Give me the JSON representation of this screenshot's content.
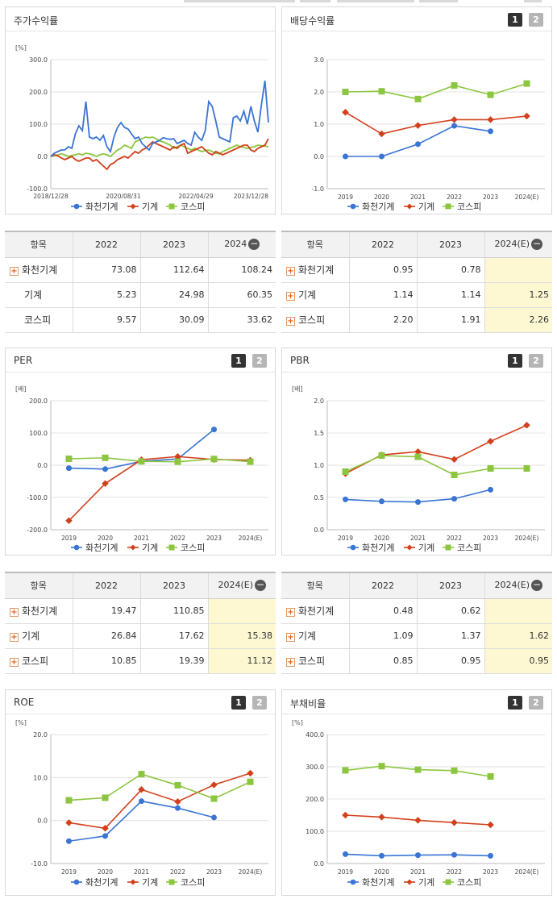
{
  "panels": {
    "stock": {
      "title": "주가수익률"
    },
    "dividend": {
      "title": "배당수익률"
    },
    "per": {
      "title": "PER"
    },
    "pbr": {
      "title": "PBR"
    },
    "roe": {
      "title": "ROE"
    },
    "debt": {
      "title": "부채비율"
    }
  },
  "pager": {
    "page1": "1",
    "page2": "2"
  },
  "legend": {
    "s1": "화천기계",
    "s2": "기계",
    "s3": "코스피"
  },
  "colors": {
    "s1": "#3a74d4",
    "s2": "#d2401c",
    "s3": "#8cc63f",
    "estimate_bg": "#fdf8d2"
  },
  "icons": {
    "expand": "plus-icon",
    "collapse": "minus-icon"
  },
  "chart_data": [
    {
      "id": "stock",
      "type": "line",
      "unit": "[%]",
      "ylim": [
        -100,
        300
      ],
      "yticks": [
        "300.0",
        "200.0",
        "100.0",
        "0.0",
        "-100.0"
      ],
      "xticks": [
        "2018/12/28",
        "2020/08/31",
        "2022/04/29",
        "2023/12/28"
      ],
      "series": [
        {
          "name": "화천기계",
          "values": [
            0,
            10,
            15,
            20,
            20,
            30,
            25,
            70,
            95,
            80,
            170,
            60,
            55,
            60,
            50,
            65,
            30,
            15,
            60,
            90,
            105,
            90,
            85,
            70,
            55,
            60,
            40,
            30,
            20,
            40,
            45,
            50,
            58,
            55,
            53,
            55,
            40,
            45,
            50,
            40,
            35,
            75,
            60,
            50,
            80,
            170,
            155,
            110,
            60,
            55,
            50,
            45,
            120,
            125,
            110,
            140,
            100,
            155,
            110,
            75,
            160,
            235,
            105
          ]
        },
        {
          "name": "기계",
          "values": [
            0,
            5,
            2,
            -5,
            -10,
            -5,
            0,
            -10,
            -15,
            -10,
            -5,
            -5,
            -15,
            -10,
            -20,
            -30,
            -40,
            -25,
            -20,
            -10,
            -5,
            0,
            -5,
            5,
            15,
            10,
            20,
            25,
            35,
            45,
            40,
            35,
            30,
            25,
            20,
            30,
            25,
            35,
            40,
            10,
            15,
            20,
            25,
            30,
            20,
            10,
            5,
            15,
            10,
            5,
            10,
            15,
            20,
            25,
            30,
            35,
            35,
            20,
            15,
            25,
            30,
            35,
            55
          ]
        },
        {
          "name": "코스피",
          "values": [
            0,
            2,
            5,
            8,
            5,
            0,
            3,
            5,
            8,
            5,
            10,
            8,
            5,
            0,
            5,
            8,
            5,
            0,
            10,
            20,
            25,
            35,
            30,
            25,
            45,
            50,
            55,
            60,
            58,
            60,
            55,
            48,
            45,
            40,
            35,
            25,
            30,
            35,
            30,
            25,
            20,
            25,
            20,
            15,
            18,
            20,
            15,
            10,
            8,
            15,
            20,
            25,
            30,
            35,
            30,
            28,
            25,
            28,
            30,
            35,
            33,
            32,
            30
          ]
        }
      ]
    },
    {
      "id": "dividend",
      "type": "line",
      "unit": "",
      "ylim": [
        -1,
        3
      ],
      "yticks": [
        "3.0",
        "2.0",
        "1.0",
        "0.0",
        "-1.0"
      ],
      "categories": [
        "2019",
        "2020",
        "2021",
        "2022",
        "2023",
        "2024(E)"
      ],
      "series": [
        {
          "name": "화천기계",
          "values": [
            0.0,
            0.0,
            0.38,
            0.95,
            0.78,
            null
          ]
        },
        {
          "name": "기계",
          "values": [
            1.37,
            0.7,
            0.96,
            1.14,
            1.14,
            1.25
          ]
        },
        {
          "name": "코스피",
          "values": [
            2.0,
            2.02,
            1.78,
            2.2,
            1.91,
            2.26
          ]
        }
      ]
    },
    {
      "id": "per",
      "type": "line",
      "unit": "[배]",
      "ylim": [
        -200,
        200
      ],
      "yticks": [
        "200.0",
        "100.0",
        "0.0",
        "-100.0",
        "-200.0"
      ],
      "categories": [
        "2019",
        "2020",
        "2021",
        "2022",
        "2023",
        "2024(E)"
      ],
      "series": [
        {
          "name": "화천기계",
          "values": [
            -9,
            -12,
            12,
            19.47,
            110.85,
            null
          ]
        },
        {
          "name": "기계",
          "values": [
            -172,
            -57,
            17,
            26.84,
            17.62,
            15.38
          ]
        },
        {
          "name": "코스피",
          "values": [
            20,
            23,
            12,
            10.85,
            19.39,
            11.12
          ]
        }
      ]
    },
    {
      "id": "pbr",
      "type": "line",
      "unit": "[배]",
      "ylim": [
        0,
        2
      ],
      "yticks": [
        "2.0",
        "1.5",
        "1.0",
        "0.5",
        "0.0"
      ],
      "categories": [
        "2019",
        "2020",
        "2021",
        "2022",
        "2023",
        "2024(E)"
      ],
      "series": [
        {
          "name": "화천기계",
          "values": [
            0.47,
            0.44,
            0.43,
            0.48,
            0.62,
            null
          ]
        },
        {
          "name": "기계",
          "values": [
            0.87,
            1.16,
            1.21,
            1.09,
            1.37,
            1.62
          ]
        },
        {
          "name": "코스피",
          "values": [
            0.9,
            1.15,
            1.13,
            0.85,
            0.95,
            0.95
          ]
        }
      ]
    },
    {
      "id": "roe",
      "type": "line",
      "unit": "[%]",
      "ylim": [
        -10,
        20
      ],
      "yticks": [
        "20.0",
        "10.0",
        "0.0",
        "-10.0"
      ],
      "categories": [
        "2019",
        "2020",
        "2021",
        "2022",
        "2023",
        "2024(E)"
      ],
      "series": [
        {
          "name": "화천기계",
          "values": [
            -4.8,
            -3.6,
            4.5,
            2.9,
            0.7,
            null
          ]
        },
        {
          "name": "기계",
          "values": [
            -0.5,
            -1.8,
            7.2,
            4.4,
            8.3,
            11.0
          ]
        },
        {
          "name": "코스피",
          "values": [
            4.7,
            5.3,
            10.8,
            8.2,
            5.1,
            9.0
          ]
        }
      ]
    },
    {
      "id": "debt",
      "type": "line",
      "unit": "[%]",
      "ylim": [
        0,
        400
      ],
      "yticks": [
        "400.0",
        "300.0",
        "200.0",
        "100.0",
        "0.0"
      ],
      "categories": [
        "2019",
        "2020",
        "2021",
        "2022",
        "2023",
        "2024(E)"
      ],
      "series": [
        {
          "name": "화천기계",
          "values": [
            29,
            24,
            26,
            27,
            24,
            null
          ]
        },
        {
          "name": "기계",
          "values": [
            150,
            144,
            134,
            127,
            120,
            null
          ]
        },
        {
          "name": "코스피",
          "values": [
            289,
            302,
            291,
            288,
            270,
            null
          ]
        }
      ]
    }
  ],
  "tables": {
    "stock": {
      "header": [
        "항목",
        "2022",
        "2023",
        "2024"
      ],
      "rows": [
        {
          "label": "화천기계",
          "expand": true,
          "values": [
            "73.08",
            "112.64",
            "108.24"
          ]
        },
        {
          "label": "기계",
          "expand": false,
          "values": [
            "5.23",
            "24.98",
            "60.35"
          ]
        },
        {
          "label": "코스피",
          "expand": false,
          "values": [
            "9.57",
            "30.09",
            "33.62"
          ]
        }
      ]
    },
    "dividend": {
      "header": [
        "항목",
        "2022",
        "2023",
        "2024(E)"
      ],
      "rows": [
        {
          "label": "화천기계",
          "expand": true,
          "values": [
            "0.95",
            "0.78",
            ""
          ]
        },
        {
          "label": "기계",
          "expand": true,
          "values": [
            "1.14",
            "1.14",
            "1.25"
          ]
        },
        {
          "label": "코스피",
          "expand": true,
          "values": [
            "2.20",
            "1.91",
            "2.26"
          ]
        }
      ]
    },
    "per": {
      "header": [
        "항목",
        "2022",
        "2023",
        "2024(E)"
      ],
      "rows": [
        {
          "label": "화천기계",
          "expand": true,
          "values": [
            "19.47",
            "110.85",
            ""
          ]
        },
        {
          "label": "기계",
          "expand": true,
          "values": [
            "26.84",
            "17.62",
            "15.38"
          ]
        },
        {
          "label": "코스피",
          "expand": true,
          "values": [
            "10.85",
            "19.39",
            "11.12"
          ]
        }
      ]
    },
    "pbr": {
      "header": [
        "항목",
        "2022",
        "2023",
        "2024(E)"
      ],
      "rows": [
        {
          "label": "화천기계",
          "expand": true,
          "values": [
            "0.48",
            "0.62",
            ""
          ]
        },
        {
          "label": "기계",
          "expand": true,
          "values": [
            "1.09",
            "1.37",
            "1.62"
          ]
        },
        {
          "label": "코스피",
          "expand": true,
          "values": [
            "0.85",
            "0.95",
            "0.95"
          ]
        }
      ]
    }
  }
}
